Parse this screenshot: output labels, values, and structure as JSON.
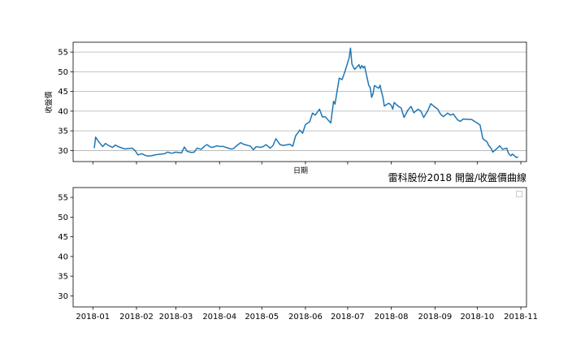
{
  "chart_data": [
    {
      "type": "line",
      "title": "",
      "xlabel": "日期",
      "ylabel": "收盤價",
      "ylim": [
        27.2,
        57.5
      ],
      "yticks": [
        30,
        35,
        40,
        45,
        50,
        55
      ],
      "xlim": [
        "2017-12-18",
        "2018-11-05"
      ],
      "grid": "horizontal",
      "line_color": "#1f77b4",
      "series": [
        {
          "name": "",
          "x": [
            "2018-01-02",
            "2018-01-03",
            "2018-01-05",
            "2018-01-08",
            "2018-01-10",
            "2018-01-12",
            "2018-01-15",
            "2018-01-17",
            "2018-01-19",
            "2018-01-22",
            "2018-01-24",
            "2018-01-26",
            "2018-01-29",
            "2018-01-31",
            "2018-02-02",
            "2018-02-05",
            "2018-02-07",
            "2018-02-09",
            "2018-02-12",
            "2018-02-14",
            "2018-02-21",
            "2018-02-23",
            "2018-02-26",
            "2018-03-01",
            "2018-03-05",
            "2018-03-07",
            "2018-03-09",
            "2018-03-12",
            "2018-03-14",
            "2018-03-16",
            "2018-03-19",
            "2018-03-21",
            "2018-03-23",
            "2018-03-26",
            "2018-03-28",
            "2018-03-30",
            "2018-04-02",
            "2018-04-03",
            "2018-04-09",
            "2018-04-11",
            "2018-04-13",
            "2018-04-16",
            "2018-04-18",
            "2018-04-20",
            "2018-04-23",
            "2018-04-25",
            "2018-04-27",
            "2018-04-30",
            "2018-05-02",
            "2018-05-04",
            "2018-05-07",
            "2018-05-09",
            "2018-05-11",
            "2018-05-14",
            "2018-05-16",
            "2018-05-18",
            "2018-05-21",
            "2018-05-23",
            "2018-05-25",
            "2018-05-28",
            "2018-05-30",
            "2018-06-01",
            "2018-06-04",
            "2018-06-06",
            "2018-06-08",
            "2018-06-11",
            "2018-06-13",
            "2018-06-15",
            "2018-06-19",
            "2018-06-21",
            "2018-06-22",
            "2018-06-25",
            "2018-06-27",
            "2018-06-29",
            "2018-07-02",
            "2018-07-03",
            "2018-07-04",
            "2018-07-05",
            "2018-07-06",
            "2018-07-09",
            "2018-07-10",
            "2018-07-11",
            "2018-07-12",
            "2018-07-13",
            "2018-07-16",
            "2018-07-17",
            "2018-07-18",
            "2018-07-19",
            "2018-07-20",
            "2018-07-23",
            "2018-07-24",
            "2018-07-25",
            "2018-07-26",
            "2018-07-27",
            "2018-07-30",
            "2018-07-31",
            "2018-08-01",
            "2018-08-02",
            "2018-08-03",
            "2018-08-06",
            "2018-08-08",
            "2018-08-10",
            "2018-08-13",
            "2018-08-15",
            "2018-08-17",
            "2018-08-20",
            "2018-08-22",
            "2018-08-24",
            "2018-08-27",
            "2018-08-29",
            "2018-08-31",
            "2018-09-03",
            "2018-09-05",
            "2018-09-07",
            "2018-09-10",
            "2018-09-12",
            "2018-09-14",
            "2018-09-17",
            "2018-09-19",
            "2018-09-21",
            "2018-09-25",
            "2018-09-27",
            "2018-10-01",
            "2018-10-03",
            "2018-10-05",
            "2018-10-08",
            "2018-10-09",
            "2018-10-11",
            "2018-10-12",
            "2018-10-15",
            "2018-10-17",
            "2018-10-19",
            "2018-10-22",
            "2018-10-23",
            "2018-10-24",
            "2018-10-25",
            "2018-10-26",
            "2018-10-29",
            "2018-10-30"
          ],
          "values": [
            30.6,
            33.4,
            32.3,
            31.0,
            31.8,
            31.3,
            30.8,
            31.4,
            31.0,
            30.6,
            30.4,
            30.5,
            30.6,
            30.0,
            28.9,
            29.2,
            28.8,
            28.6,
            28.7,
            28.9,
            29.2,
            29.6,
            29.3,
            29.6,
            29.4,
            30.9,
            29.8,
            29.5,
            29.6,
            30.6,
            30.3,
            31.0,
            31.5,
            30.8,
            30.9,
            31.2,
            31.0,
            31.1,
            30.4,
            30.5,
            31.2,
            32.0,
            31.6,
            31.4,
            31.1,
            30.2,
            31.0,
            30.8,
            31.0,
            31.5,
            30.6,
            31.3,
            33.0,
            31.5,
            31.3,
            31.4,
            31.6,
            31.1,
            33.7,
            35.2,
            34.4,
            36.6,
            37.3,
            39.5,
            39.0,
            40.5,
            38.5,
            38.6,
            37.0,
            42.5,
            41.8,
            48.4,
            48.0,
            50.0,
            53.5,
            56.0,
            52.0,
            51.2,
            50.6,
            51.8,
            50.8,
            51.6,
            51.0,
            51.4,
            46.5,
            46.0,
            43.5,
            44.4,
            46.5,
            45.8,
            46.6,
            44.9,
            43.6,
            41.3,
            42.0,
            41.8,
            41.4,
            40.5,
            42.2,
            41.2,
            40.8,
            38.4,
            40.4,
            41.2,
            39.6,
            40.5,
            40.0,
            38.4,
            40.2,
            41.9,
            41.3,
            40.5,
            39.2,
            38.6,
            39.5,
            39.0,
            39.3,
            37.8,
            37.4,
            38.0,
            37.9,
            37.9,
            37.0,
            36.5,
            33.0,
            32.2,
            31.4,
            30.5,
            29.6,
            30.5,
            31.2,
            30.3,
            30.6,
            29.5,
            28.9,
            28.7,
            29.1,
            28.2,
            28.4
          ]
        }
      ]
    },
    {
      "type": "line",
      "title": "雷科股份2018 開盤/收盤價曲線",
      "xlabel": "",
      "ylabel": "",
      "ylim": [
        27.2,
        57.5
      ],
      "yticks": [
        30,
        35,
        40,
        45,
        50,
        55
      ],
      "xlim": [
        "2017-12-18",
        "2018-11-05"
      ],
      "xticks": [
        "2018-01",
        "2018-02",
        "2018-03",
        "2018-04",
        "2018-05",
        "2018-06",
        "2018-07",
        "2018-08",
        "2018-09",
        "2018-10",
        "2018-11"
      ],
      "grid": "off",
      "legend": "top-right",
      "series": []
    }
  ]
}
